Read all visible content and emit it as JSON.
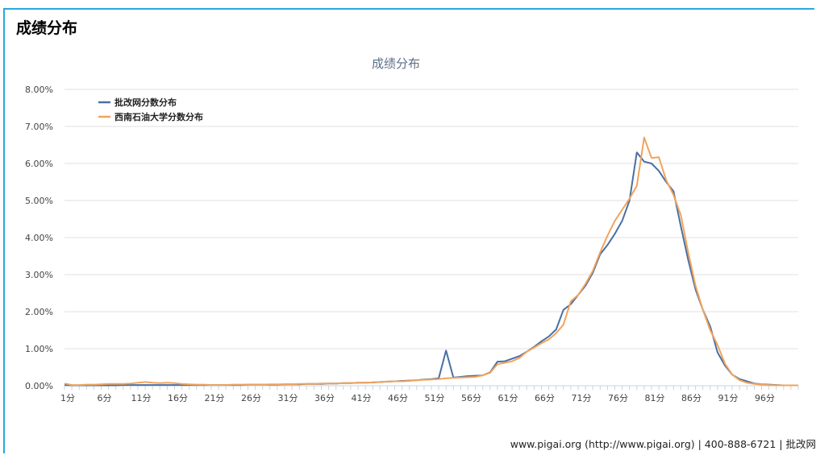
{
  "page": {
    "title": "成绩分布"
  },
  "footer": {
    "text": "www.pigai.org (http://www.pigai.org) | 400-888-6721 | 批改网"
  },
  "colors": {
    "frame": "#29a8df",
    "series1": "#4a6fa5",
    "series2": "#f0a45c",
    "grid": "#e2e2e2",
    "title": "#5c6f86"
  },
  "chart_data": {
    "type": "line",
    "title": "成绩分布",
    "ylim": [
      0,
      8
    ],
    "y_ticks": [
      "0.00%",
      "1.00%",
      "2.00%",
      "3.00%",
      "4.00%",
      "5.00%",
      "6.00%",
      "7.00%",
      "8.00%"
    ],
    "x_tick_labels": [
      "1分",
      "6分",
      "11分",
      "16分",
      "21分",
      "26分",
      "31分",
      "36分",
      "41分",
      "46分",
      "51分",
      "56分",
      "61分",
      "66分",
      "71分",
      "76分",
      "81分",
      "86分",
      "91分",
      "96分"
    ],
    "x": [
      1,
      2,
      3,
      4,
      5,
      6,
      7,
      8,
      9,
      10,
      11,
      12,
      13,
      14,
      15,
      16,
      17,
      18,
      19,
      20,
      21,
      22,
      23,
      24,
      25,
      26,
      27,
      28,
      29,
      30,
      31,
      32,
      33,
      34,
      35,
      36,
      37,
      38,
      39,
      40,
      41,
      42,
      43,
      44,
      45,
      46,
      47,
      48,
      49,
      50,
      51,
      52,
      53,
      54,
      55,
      56,
      57,
      58,
      59,
      60,
      61,
      62,
      63,
      64,
      65,
      66,
      67,
      68,
      69,
      70,
      71,
      72,
      73,
      74,
      75,
      76,
      77,
      78,
      79,
      80,
      81,
      82,
      83,
      84,
      85,
      86,
      87,
      88,
      89,
      90,
      91,
      92,
      93,
      94,
      95,
      96,
      97,
      98,
      99,
      100,
      101
    ],
    "grid": true,
    "legend_position": "top-left",
    "series": [
      {
        "name": "批改网分数分布",
        "color": "#4a6fa5",
        "values": [
          0.02,
          0.01,
          0.01,
          0.01,
          0.01,
          0.01,
          0.01,
          0.01,
          0.02,
          0.02,
          0.02,
          0.02,
          0.02,
          0.02,
          0.02,
          0.02,
          0.02,
          0.02,
          0.02,
          0.02,
          0.02,
          0.02,
          0.02,
          0.02,
          0.02,
          0.03,
          0.03,
          0.03,
          0.03,
          0.03,
          0.04,
          0.04,
          0.04,
          0.05,
          0.05,
          0.05,
          0.06,
          0.06,
          0.07,
          0.07,
          0.08,
          0.08,
          0.09,
          0.1,
          0.11,
          0.12,
          0.13,
          0.14,
          0.15,
          0.17,
          0.18,
          0.2,
          0.95,
          0.22,
          0.24,
          0.26,
          0.27,
          0.28,
          0.36,
          0.65,
          0.66,
          0.73,
          0.8,
          0.92,
          1.05,
          1.2,
          1.33,
          1.52,
          2.05,
          2.2,
          2.45,
          2.7,
          3.05,
          3.55,
          3.8,
          4.1,
          4.45,
          5.0,
          6.3,
          6.05,
          6.0,
          5.8,
          5.5,
          5.25,
          4.3,
          3.4,
          2.6,
          2.05,
          1.6,
          0.9,
          0.55,
          0.3,
          0.18,
          0.12,
          0.06,
          0.04,
          0.03,
          0.02,
          0.01,
          0.01,
          0.01
        ]
      },
      {
        "name": "西南石油大学分数分布",
        "color": "#f0a45c",
        "values": [
          0.06,
          0.02,
          0.02,
          0.03,
          0.03,
          0.04,
          0.05,
          0.05,
          0.05,
          0.06,
          0.08,
          0.1,
          0.08,
          0.07,
          0.08,
          0.07,
          0.05,
          0.04,
          0.03,
          0.03,
          0.02,
          0.02,
          0.02,
          0.03,
          0.03,
          0.03,
          0.03,
          0.03,
          0.04,
          0.04,
          0.04,
          0.04,
          0.05,
          0.05,
          0.05,
          0.06,
          0.06,
          0.06,
          0.07,
          0.07,
          0.08,
          0.08,
          0.09,
          0.1,
          0.11,
          0.12,
          0.12,
          0.13,
          0.15,
          0.16,
          0.17,
          0.18,
          0.2,
          0.21,
          0.22,
          0.23,
          0.24,
          0.28,
          0.35,
          0.58,
          0.62,
          0.66,
          0.75,
          0.92,
          1.03,
          1.15,
          1.25,
          1.42,
          1.65,
          2.28,
          2.45,
          2.75,
          3.1,
          3.6,
          4.05,
          4.45,
          4.75,
          5.05,
          5.4,
          6.7,
          6.15,
          6.17,
          5.55,
          5.15,
          4.6,
          3.6,
          2.7,
          2.05,
          1.5,
          1.1,
          0.6,
          0.3,
          0.15,
          0.08,
          0.05,
          0.03,
          0.02,
          0.01,
          0.01,
          0.01,
          0.01
        ]
      }
    ]
  }
}
